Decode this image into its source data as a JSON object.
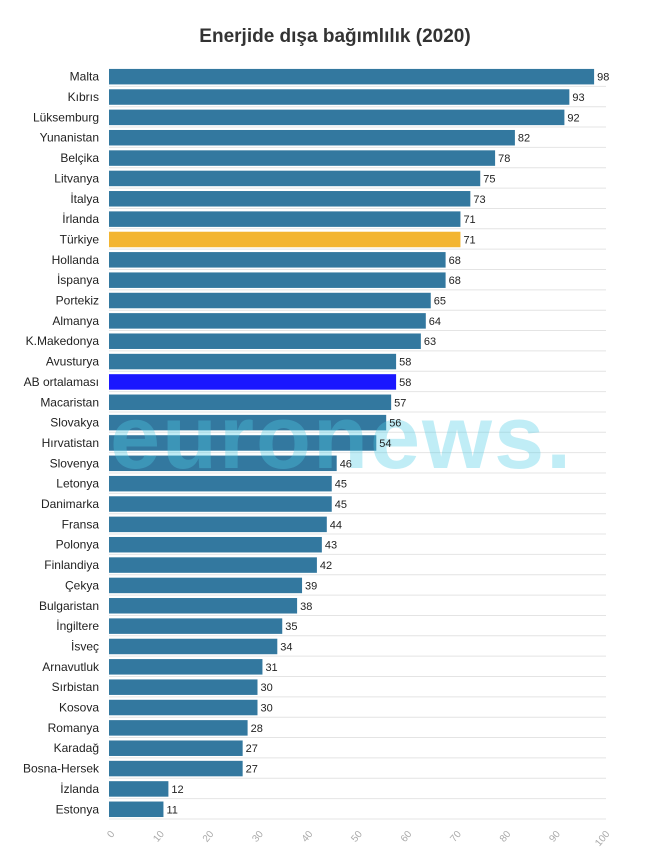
{
  "chart_data": {
    "type": "bar",
    "orientation": "horizontal",
    "title": "Enerjide dışa bağımlılık (2020)",
    "categories": [
      "Malta",
      "Kıbrıs",
      "Lüksemburg",
      "Yunanistan",
      "Belçika",
      "Litvanya",
      "İtalya",
      "İrlanda",
      "Türkiye",
      "Hollanda",
      "İspanya",
      "Portekiz",
      "Almanya",
      "K.Makedonya",
      "Avusturya",
      "AB ortalaması",
      "Macaristan",
      "Slovakya",
      "Hırvatistan",
      "Slovenya",
      "Letonya",
      "Danimarka",
      "Fransa",
      "Polonya",
      "Finlandiya",
      "Çekya",
      "Bulgaristan",
      "İngiltere",
      "İsveç",
      "Arnavutluk",
      "Sırbistan",
      "Kosova",
      "Romanya",
      "Karadağ",
      "Bosna-Hersek",
      "İzlanda",
      "Estonya"
    ],
    "values": [
      98,
      93,
      92,
      82,
      78,
      75,
      73,
      71,
      71,
      68,
      68,
      65,
      64,
      63,
      58,
      58,
      57,
      56,
      54,
      46,
      45,
      45,
      44,
      43,
      42,
      39,
      38,
      35,
      34,
      31,
      30,
      30,
      28,
      27,
      27,
      12,
      11
    ],
    "highlight": {
      "Türkiye": "#f3b531",
      "AB ortalaması": "#1a17ff"
    },
    "xlim": [
      0,
      100
    ],
    "xticks": [
      "0",
      "10",
      "20",
      "30",
      "40",
      "50",
      "60",
      "70",
      "80",
      "90",
      "100"
    ],
    "grid": true,
    "legend": "none"
  },
  "colors": {
    "bar": "#33789f",
    "turkey": "#f3b531",
    "eu_average": "#1a17ff",
    "watermark": "#4ecde6"
  },
  "watermark_text": "euronews."
}
